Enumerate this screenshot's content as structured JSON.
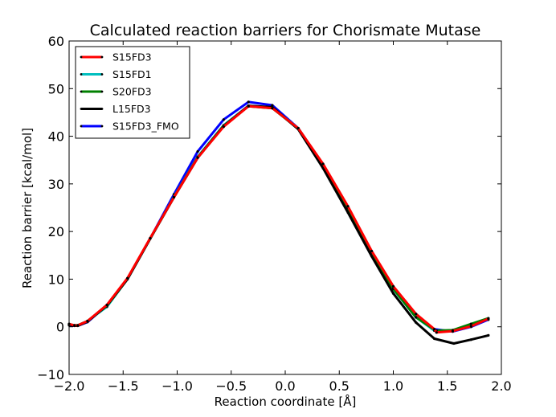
{
  "chart_data": {
    "type": "line",
    "title": "Calculated reaction barriers for Chorismate Mutase",
    "xlabel": "Reaction coordinate [Å]",
    "ylabel": "Reaction barrier [kcal/mol]",
    "xlim": [
      -2.0,
      2.0
    ],
    "ylim": [
      -10,
      60
    ],
    "xticks": [
      -2.0,
      -1.5,
      -1.0,
      -0.5,
      0.0,
      0.5,
      1.0,
      1.5,
      2.0
    ],
    "xtick_labels": [
      "−2.0",
      "−1.5",
      "−1.0",
      "−0.5",
      "0.0",
      "0.5",
      "1.0",
      "1.5",
      "2.0"
    ],
    "yticks": [
      -10,
      0,
      10,
      20,
      30,
      40,
      50,
      60
    ],
    "ytick_labels": [
      "−10",
      "0",
      "10",
      "20",
      "30",
      "40",
      "50",
      "60"
    ],
    "grid": false,
    "legend_position": "top-left",
    "series": [
      {
        "name": "S15FD3_FMO",
        "color": "#0000ff",
        "x": [
          -2.0,
          -1.95,
          -1.92,
          -1.83,
          -1.65,
          -1.46,
          -1.25,
          -1.03,
          -0.81,
          -0.57,
          -0.34,
          -0.12,
          0.12,
          0.35,
          0.58,
          0.8,
          1.0,
          1.21,
          1.38,
          1.55,
          1.72,
          1.88
        ],
        "y": [
          0.3,
          0.2,
          0.2,
          1.0,
          4.5,
          10.0,
          18.5,
          27.8,
          36.8,
          43.5,
          47.2,
          46.5,
          41.7,
          34.0,
          25.0,
          15.5,
          8.0,
          2.0,
          -0.5,
          -1.0,
          0.0,
          1.5
        ]
      },
      {
        "name": "S15FD1",
        "color": "#00bfbf",
        "x": [
          -2.0,
          -1.95,
          -1.92,
          -1.83,
          -1.65,
          -1.46,
          -1.25,
          -1.03,
          -0.81,
          -0.57,
          -0.34,
          -0.12,
          0.12,
          0.35,
          0.58,
          0.8,
          1.0,
          1.21,
          1.38,
          1.4,
          1.55,
          1.72,
          1.88
        ],
        "y": [
          0.5,
          0.3,
          0.3,
          1.2,
          4.2,
          10.0,
          18.5,
          27.3,
          35.7,
          42.3,
          46.4,
          46.0,
          41.7,
          34.0,
          25.0,
          15.5,
          7.9,
          2.0,
          -0.8,
          -1.0,
          -0.8,
          0.5,
          1.7
        ]
      },
      {
        "name": "S20FD3",
        "color": "#008000",
        "x": [
          -2.0,
          -1.95,
          -1.92,
          -1.83,
          -1.65,
          -1.46,
          -1.25,
          -1.03,
          -0.81,
          -0.57,
          -0.34,
          -0.12,
          0.12,
          0.35,
          0.58,
          0.8,
          1.0,
          1.21,
          1.38,
          1.4,
          1.55,
          1.72,
          1.88
        ],
        "y": [
          0.5,
          0.3,
          0.3,
          1.2,
          4.4,
          10.0,
          18.5,
          27.2,
          35.6,
          42.2,
          46.3,
          45.9,
          41.6,
          34.0,
          25.0,
          15.6,
          8.0,
          2.0,
          -0.6,
          -0.8,
          -0.7,
          0.6,
          1.8
        ]
      },
      {
        "name": "L15FD3",
        "color": "#000000",
        "x": [
          -2.0,
          -1.95,
          -1.92,
          -1.83,
          -1.65,
          -1.46,
          -1.25,
          -1.03,
          -0.81,
          -0.57,
          -0.34,
          -0.12,
          0.12,
          0.35,
          0.58,
          0.8,
          1.0,
          1.21,
          1.38,
          1.56,
          1.72,
          1.88
        ],
        "y": [
          0.5,
          0.2,
          0.2,
          1.1,
          4.5,
          10.0,
          18.5,
          27.2,
          35.5,
          42.1,
          46.4,
          46.1,
          41.5,
          33.3,
          24.0,
          14.8,
          7.0,
          0.9,
          -2.5,
          -3.5,
          -2.7,
          -1.8
        ]
      },
      {
        "name": "S15FD3",
        "color": "#ff0000",
        "x": [
          -2.0,
          -1.95,
          -1.92,
          -1.83,
          -1.65,
          -1.46,
          -1.25,
          -1.03,
          -0.81,
          -0.57,
          -0.34,
          -0.12,
          0.12,
          0.35,
          0.58,
          0.8,
          1.0,
          1.21,
          1.38,
          1.4,
          1.55,
          1.72,
          1.88
        ],
        "y": [
          0.6,
          0.3,
          0.3,
          1.2,
          4.6,
          10.2,
          18.6,
          27.2,
          35.5,
          42.0,
          46.3,
          45.9,
          41.7,
          34.2,
          25.3,
          15.9,
          8.5,
          2.7,
          -0.5,
          -1.2,
          -0.9,
          0.1,
          1.7
        ]
      }
    ],
    "legend": [
      {
        "name": "S15FD3",
        "color": "#ff0000"
      },
      {
        "name": "S15FD1",
        "color": "#00bfbf"
      },
      {
        "name": "S20FD3",
        "color": "#008000"
      },
      {
        "name": "L15FD3",
        "color": "#000000"
      },
      {
        "name": "S15FD3_FMO",
        "color": "#0000ff"
      }
    ]
  }
}
